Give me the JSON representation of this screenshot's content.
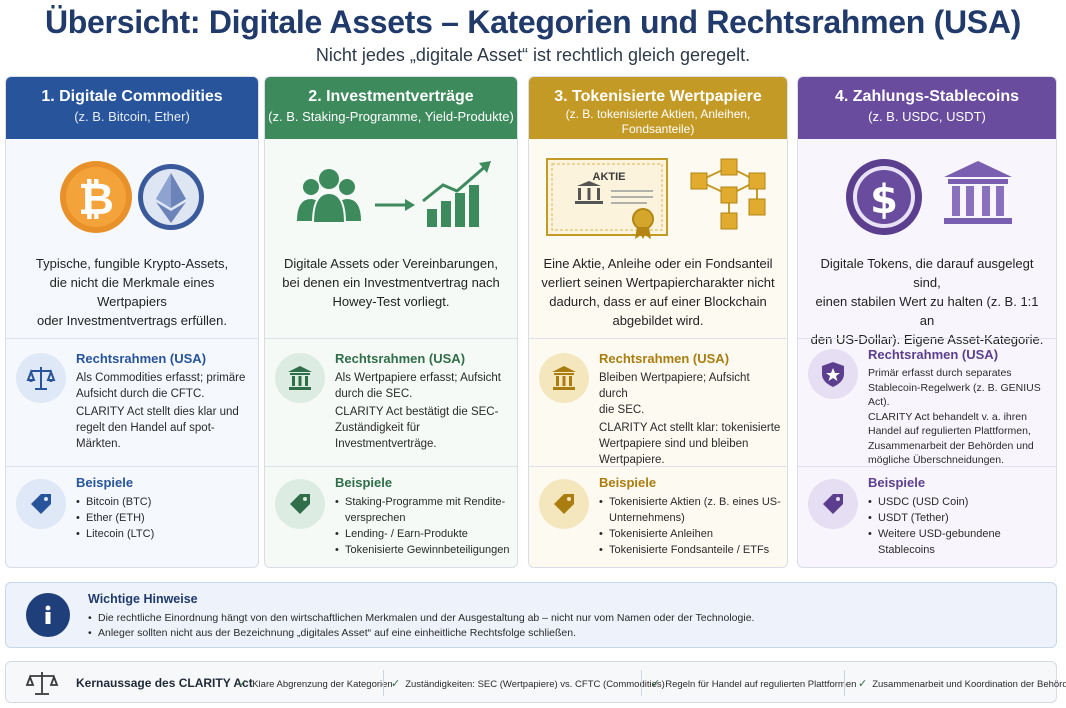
{
  "header": {
    "title": "Übersicht: Digitale Assets – Kategorien und Rechtsrahmen (USA)",
    "subtitle": "Nicht jedes „digitale Asset“ ist rechtlich gleich geregelt."
  },
  "columns": [
    {
      "title": "1. Digitale Commodities",
      "subtitle": "(z. B. Bitcoin, Ether)",
      "desc": [
        "Typische, fungible Krypto-Assets,",
        "die nicht die Merkmale eines Wertpapiers",
        "oder Investmentvertrags erfüllen."
      ],
      "legal_title": "Rechtsrahmen (USA)",
      "legal_lines": [
        "Als Commodities erfasst; primäre",
        "Aufsicht durch die CFTC.",
        "CLARITY Act stellt dies klar und",
        "regelt den Handel auf spot-Märkten."
      ],
      "ex_title": "Beispiele",
      "examples": [
        "Bitcoin (BTC)",
        "Ether (ETH)",
        "Litecoin (LTC)"
      ],
      "color": "#27549a"
    },
    {
      "title": "2. Investmentverträge",
      "subtitle": "(z. B. Staking-Programme, Yield-Produkte)",
      "desc": [
        "Digitale Assets oder Vereinbarungen,",
        "bei denen ein Investmentvertrag nach",
        "Howey-Test vorliegt."
      ],
      "legal_title": "Rechtsrahmen (USA)",
      "legal_lines": [
        "Als Wertpapiere erfasst; Aufsicht",
        "durch die SEC.",
        "CLARITY Act bestätigt die SEC-",
        "Zuständigkeit für Investmentverträge."
      ],
      "ex_title": "Beispiele",
      "examples": [
        "Staking-Programme mit Rendite- versprechen",
        "Lending- / Earn-Produkte",
        "Tokenisierte Gewinnbeteiligungen"
      ],
      "color": "#3d8a5c"
    },
    {
      "title": "3. Tokenisierte Wertpapiere",
      "subtitle": "(z. B. tokenisierte Aktien, Anleihen, Fondsanteile)",
      "desc": [
        "Eine Aktie, Anleihe oder ein Fondsanteil",
        "verliert seinen Wertpapiercharakter nicht",
        "dadurch, dass er auf einer Blockchain",
        "abgebildet wird."
      ],
      "certificate_label": "AKTIE",
      "legal_title": "Rechtsrahmen (USA)",
      "legal_lines": [
        "Bleiben Wertpapiere; Aufsicht durch",
        "die SEC.",
        "CLARITY Act stellt klar: tokenisierte",
        "Wertpapiere sind und bleiben",
        "Wertpapiere."
      ],
      "ex_title": "Beispiele",
      "examples": [
        "Tokenisierte Aktien (z. B. eines US-Unternehmens)",
        "Tokenisierte Anleihen",
        "Tokenisierte Fondsanteile / ETFs"
      ],
      "color": "#c49a26"
    },
    {
      "title": "4. Zahlungs-Stablecoins",
      "subtitle": "(z. B. USDC, USDT)",
      "desc": [
        "Digitale Tokens, die darauf ausgelegt sind,",
        "einen stabilen Wert zu halten (z. B. 1:1 an",
        "den US-Dollar). Eigene Asset-Kategorie."
      ],
      "legal_title": "Rechtsrahmen (USA)",
      "legal_lines": [
        "Primär erfasst durch separates",
        "Stablecoin-Regelwerk (z. B. GENIUS Act).",
        "CLARITY Act behandelt v. a. ihren",
        "Handel auf regulierten Plattformen,",
        "Zusammenarbeit der Behörden und",
        "mögliche Überschneidungen."
      ],
      "ex_title": "Beispiele",
      "examples": [
        "USDC (USD Coin)",
        "USDT (Tether)",
        "Weitere USD-gebundene Stablecoins"
      ],
      "color": "#6a4c9f"
    }
  ],
  "hints": {
    "title": "Wichtige Hinweise",
    "items": [
      "Die rechtliche Einordnung hängt von den wirtschaftlichen Merkmalen und der Ausgestaltung ab – nicht nur vom Namen oder der Technologie.",
      "Anleger sollten nicht aus der Bezeichnung „digitales Asset“ auf eine einheitliche Rechtsfolge schließen."
    ]
  },
  "summary": {
    "title": "Kernaussage des CLARITY Act",
    "items": [
      "Klare Abgrenzung der Kategorien",
      "Zuständigkeiten: SEC (Wertpapiere) vs. CFTC (Commodities)",
      "Regeln für Handel auf regulierten Plattformen",
      "Zusammenarbeit und Koordination der Behörden"
    ],
    "check": "✓"
  }
}
